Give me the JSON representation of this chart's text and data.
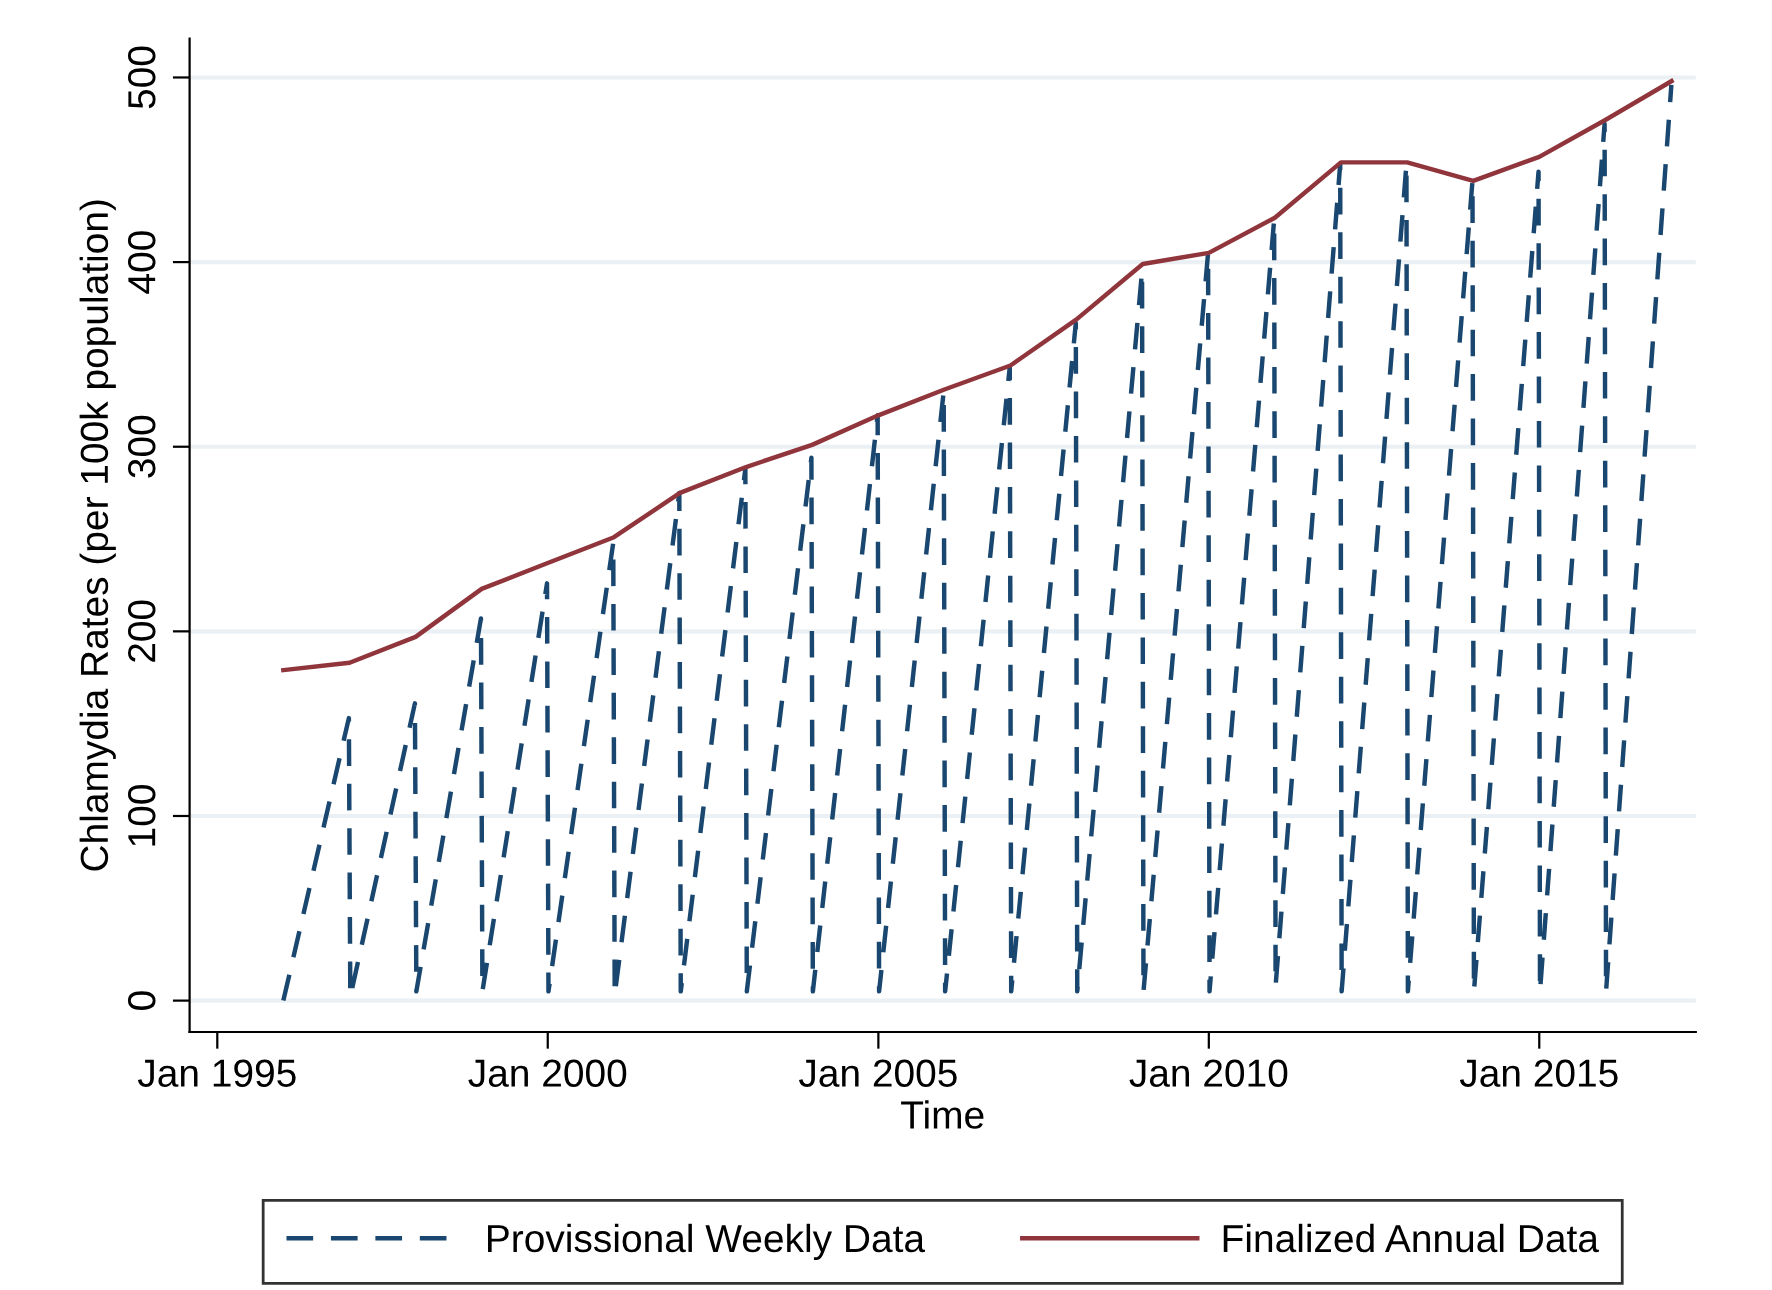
{
  "chart_data": {
    "type": "line",
    "xlabel": "Time",
    "ylabel": "Chlamydia Rates (per 100k population)",
    "xlim": [
      "1994-08-01",
      "2017-05-15"
    ],
    "ylim": [
      -17,
      521
    ],
    "xticks": [
      {
        "value": "1995-01-01",
        "label": "Jan 1995"
      },
      {
        "value": "2000-01-01",
        "label": "Jan 2000"
      },
      {
        "value": "2005-01-01",
        "label": "Jan 2005"
      },
      {
        "value": "2010-01-01",
        "label": "Jan 2010"
      },
      {
        "value": "2015-01-01",
        "label": "Jan 2015"
      }
    ],
    "yticks": [
      0,
      100,
      200,
      300,
      400,
      500
    ],
    "grid": "y",
    "legend": "bottom",
    "series": [
      {
        "name": "Provissional Weekly Data",
        "color": "#1a476f",
        "line_style": "dashed",
        "x": [
          "1996-01-01",
          "1996-12-28",
          "1997-01-05",
          "1997-12-28",
          "1998-01-05",
          "1998-12-28",
          "1999-01-05",
          "1999-12-28",
          "2000-01-05",
          "2000-12-28",
          "2001-01-05",
          "2001-12-28",
          "2002-01-05",
          "2002-12-28",
          "2003-01-05",
          "2003-12-28",
          "2004-01-05",
          "2004-12-28",
          "2005-01-05",
          "2005-12-28",
          "2006-01-05",
          "2006-12-28",
          "2007-01-05",
          "2007-12-28",
          "2008-01-05",
          "2008-12-28",
          "2009-01-05",
          "2009-12-28",
          "2010-01-05",
          "2010-12-28",
          "2011-01-05",
          "2011-12-28",
          "2012-01-05",
          "2012-12-28",
          "2013-01-05",
          "2013-12-28",
          "2014-01-05",
          "2014-12-28",
          "2015-01-05",
          "2015-12-28",
          "2016-01-05",
          "2016-12-31"
        ],
        "values": [
          0,
          153,
          2,
          161,
          5,
          207,
          5,
          226,
          5,
          248,
          3,
          275,
          5,
          288,
          5,
          294,
          5,
          317,
          5,
          330,
          5,
          343,
          5,
          367,
          5,
          395,
          5,
          405,
          5,
          423,
          8,
          453,
          5,
          453,
          5,
          444,
          5,
          449,
          5,
          475,
          5,
          496
        ]
      },
      {
        "name": "Finalized Annual Data",
        "color": "#90353b",
        "line_style": "solid",
        "x": [
          "1996-01-01",
          "1997-01-01",
          "1998-01-01",
          "1999-01-01",
          "2000-01-01",
          "2001-01-01",
          "2002-01-01",
          "2003-01-01",
          "2004-01-01",
          "2005-01-01",
          "2006-01-01",
          "2007-01-01",
          "2008-01-01",
          "2009-01-01",
          "2010-01-01",
          "2011-01-01",
          "2012-01-01",
          "2013-01-01",
          "2014-01-01",
          "2015-01-01",
          "2016-01-01",
          "2017-01-01"
        ],
        "values": [
          179,
          183,
          197,
          223,
          237,
          251,
          275,
          289,
          301,
          317,
          331,
          344,
          369,
          399,
          405,
          424,
          454,
          454,
          444,
          457,
          477,
          498
        ]
      }
    ]
  }
}
